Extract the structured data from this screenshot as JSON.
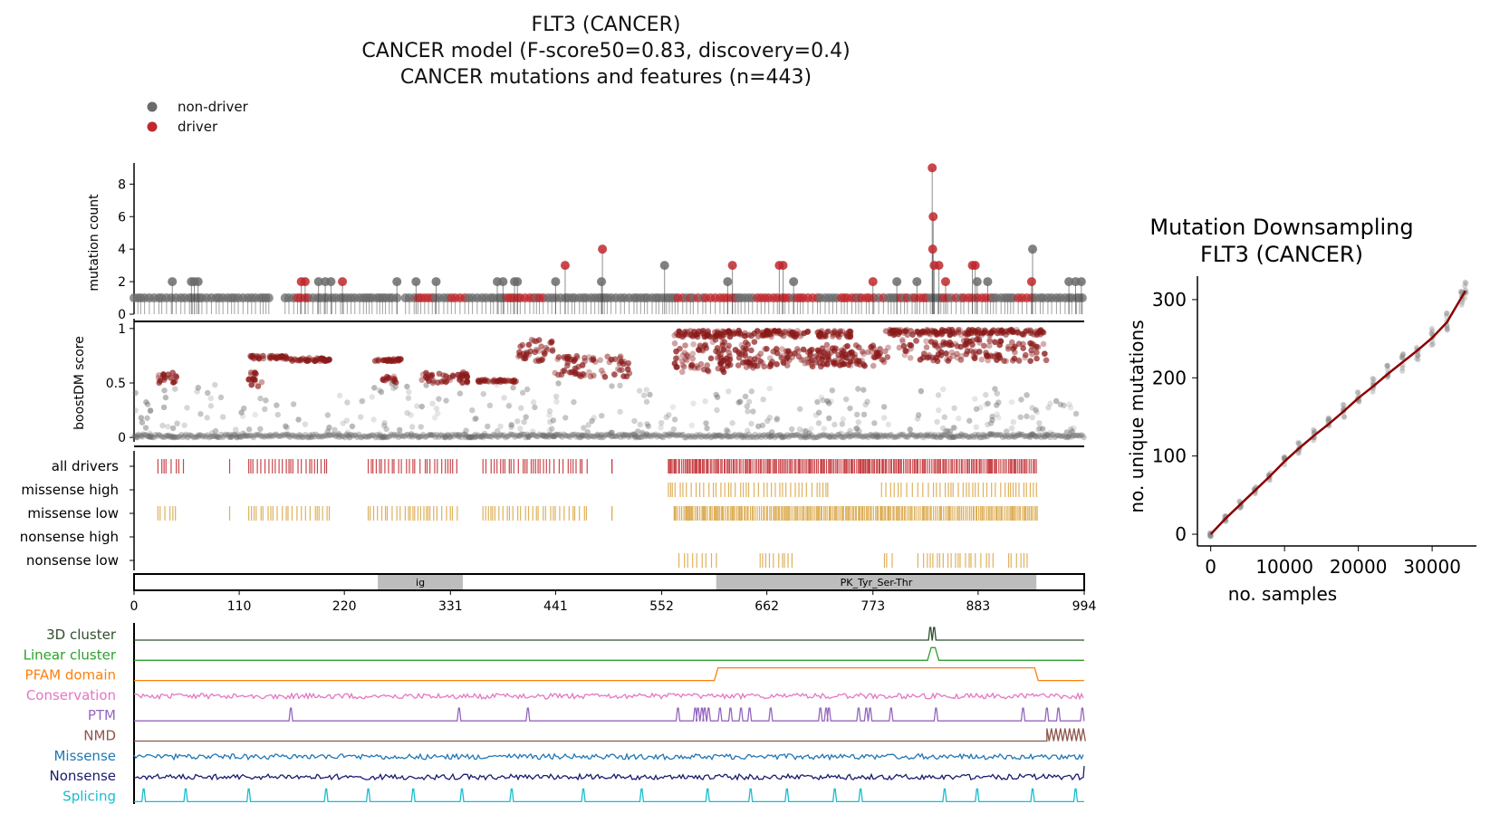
{
  "title": {
    "line1": "FLT3 (CANCER)",
    "line2": "CANCER model (F-score50=0.83, discovery=0.4)",
    "line3": "CANCER mutations and features (n=443)"
  },
  "legend": {
    "items": [
      {
        "label": "non-driver",
        "color": "#6b6b6b"
      },
      {
        "label": "driver",
        "color": "#c0282d"
      }
    ]
  },
  "colors": {
    "driver": "#c0282d",
    "driver_dark": "#8b1a1a",
    "nondriver": "#6b6b6b",
    "track_gold": "#d9a441",
    "domain_fill": "#bdbdbd",
    "downsampling_line": "#8b0000"
  },
  "chart_data": [
    {
      "type": "scatter",
      "name": "mutation-count-lollipop",
      "ylabel": "mutation count",
      "ylim": [
        0,
        9.3
      ],
      "yticks": [
        0,
        2,
        4,
        6,
        8
      ],
      "xlim": [
        0,
        994
      ],
      "stems": [
        {
          "pos": 40,
          "count": 2,
          "driver": false
        },
        {
          "pos": 60,
          "count": 2,
          "driver": false
        },
        {
          "pos": 63,
          "count": 2,
          "driver": false
        },
        {
          "pos": 67,
          "count": 2,
          "driver": false
        },
        {
          "pos": 175,
          "count": 2,
          "driver": true
        },
        {
          "pos": 179,
          "count": 2,
          "driver": true
        },
        {
          "pos": 193,
          "count": 2,
          "driver": false
        },
        {
          "pos": 200,
          "count": 2,
          "driver": false
        },
        {
          "pos": 206,
          "count": 2,
          "driver": false
        },
        {
          "pos": 218,
          "count": 2,
          "driver": true
        },
        {
          "pos": 275,
          "count": 2,
          "driver": false
        },
        {
          "pos": 295,
          "count": 2,
          "driver": false
        },
        {
          "pos": 316,
          "count": 2,
          "driver": false
        },
        {
          "pos": 380,
          "count": 2,
          "driver": false
        },
        {
          "pos": 386,
          "count": 2,
          "driver": false
        },
        {
          "pos": 398,
          "count": 2,
          "driver": false
        },
        {
          "pos": 401,
          "count": 2,
          "driver": false
        },
        {
          "pos": 451,
          "count": 3,
          "driver": true
        },
        {
          "pos": 441,
          "count": 2,
          "driver": false
        },
        {
          "pos": 490,
          "count": 4,
          "driver": true
        },
        {
          "pos": 489,
          "count": 2,
          "driver": false
        },
        {
          "pos": 555,
          "count": 3,
          "driver": false
        },
        {
          "pos": 626,
          "count": 3,
          "driver": true
        },
        {
          "pos": 621,
          "count": 2,
          "driver": false
        },
        {
          "pos": 675,
          "count": 3,
          "driver": true
        },
        {
          "pos": 679,
          "count": 3,
          "driver": true
        },
        {
          "pos": 690,
          "count": 2,
          "driver": false
        },
        {
          "pos": 773,
          "count": 2,
          "driver": true
        },
        {
          "pos": 798,
          "count": 2,
          "driver": false
        },
        {
          "pos": 819,
          "count": 2,
          "driver": false
        },
        {
          "pos": 835,
          "count": 9,
          "driver": true
        },
        {
          "pos": 836,
          "count": 6,
          "driver": true
        },
        {
          "pos": 835.5,
          "count": 4,
          "driver": true
        },
        {
          "pos": 837,
          "count": 3,
          "driver": true
        },
        {
          "pos": 842,
          "count": 3,
          "driver": true
        },
        {
          "pos": 849,
          "count": 2,
          "driver": true
        },
        {
          "pos": 877,
          "count": 3,
          "driver": true
        },
        {
          "pos": 880,
          "count": 3,
          "driver": true
        },
        {
          "pos": 882,
          "count": 2,
          "driver": false
        },
        {
          "pos": 893,
          "count": 2,
          "driver": false
        },
        {
          "pos": 940,
          "count": 4,
          "driver": false
        },
        {
          "pos": 939,
          "count": 2,
          "driver": true
        },
        {
          "pos": 978,
          "count": 2,
          "driver": false
        },
        {
          "pos": 985,
          "count": 2,
          "driver": false
        },
        {
          "pos": 991,
          "count": 2,
          "driver": false
        }
      ],
      "baseline": {
        "count": 1,
        "ranges": [
          [
            0,
            144
          ],
          [
            158,
            275
          ],
          [
            284,
            994
          ]
        ],
        "driver_ranges": [
          [
            168,
            182
          ],
          [
            297,
            312
          ],
          [
            325,
            352
          ],
          [
            390,
            430
          ],
          [
            568,
            630
          ],
          [
            650,
            716
          ],
          [
            735,
            790
          ],
          [
            800,
            830
          ],
          [
            845,
            900
          ],
          [
            925,
            940
          ]
        ]
      }
    },
    {
      "type": "scatter",
      "name": "boostdm-score",
      "ylabel": "boostDM score",
      "ylim": [
        -0.04,
        1.04
      ],
      "yticks": [
        0,
        0.5,
        1
      ],
      "ytick_labels": [
        "0",
        "0.5",
        "1"
      ],
      "xlim": [
        0,
        994
      ],
      "driver_clusters": [
        {
          "x": [
            25,
            45
          ],
          "y": [
            0.5,
            0.62
          ]
        },
        {
          "x": [
            120,
            160
          ],
          "y": [
            0.72,
            0.75
          ]
        },
        {
          "x": [
            118,
            135
          ],
          "y": [
            0.46,
            0.6
          ]
        },
        {
          "x": [
            160,
            205
          ],
          "y": [
            0.7,
            0.73
          ]
        },
        {
          "x": [
            250,
            280
          ],
          "y": [
            0.7,
            0.72
          ]
        },
        {
          "x": [
            260,
            275
          ],
          "y": [
            0.5,
            0.56
          ]
        },
        {
          "x": [
            300,
            350
          ],
          "y": [
            0.5,
            0.6
          ]
        },
        {
          "x": [
            360,
            400
          ],
          "y": [
            0.51,
            0.53
          ]
        },
        {
          "x": [
            400,
            440
          ],
          "y": [
            0.7,
            0.9
          ]
        },
        {
          "x": [
            440,
            520
          ],
          "y": [
            0.55,
            0.75
          ]
        },
        {
          "x": [
            565,
            750
          ],
          "y": [
            0.92,
            0.98
          ]
        },
        {
          "x": [
            565,
            650
          ],
          "y": [
            0.6,
            0.9
          ]
        },
        {
          "x": [
            610,
            760
          ],
          "y": [
            0.65,
            0.82
          ]
        },
        {
          "x": [
            720,
            790
          ],
          "y": [
            0.65,
            0.85
          ]
        },
        {
          "x": [
            785,
            955
          ],
          "y": [
            0.94,
            0.99
          ]
        },
        {
          "x": [
            800,
            955
          ],
          "y": [
            0.7,
            0.9
          ]
        }
      ],
      "nondriver_points": "dense band near 0 across all positions, scattered grey points between 0.05 and 0.5"
    },
    {
      "type": "table",
      "name": "mutation-tracks",
      "rows": [
        "all drivers",
        "missense high",
        "missense low",
        "nonsense high",
        "nonsense low"
      ],
      "colors": [
        "#c0282d",
        "#d9a441",
        "#d9a441",
        "#d9a441",
        "#d9a441"
      ],
      "segments": [
        [
          [
            25,
            56
          ],
          [
            100,
            102
          ],
          [
            120,
            205
          ],
          [
            245,
            340
          ],
          [
            365,
            475
          ],
          [
            500,
            500
          ],
          [
            559,
            945
          ]
        ],
        [
          [
            559,
            728
          ],
          [
            782,
            948
          ]
        ],
        [
          [
            25,
            45
          ],
          [
            100,
            102
          ],
          [
            120,
            205
          ],
          [
            245,
            340
          ],
          [
            365,
            475
          ],
          [
            500,
            500
          ],
          [
            565,
            945
          ]
        ],
        [],
        [
          [
            570,
            610
          ],
          [
            655,
            690
          ],
          [
            785,
            795
          ],
          [
            820,
            900
          ],
          [
            915,
            935
          ]
        ]
      ]
    },
    {
      "type": "bar",
      "name": "protein-domains",
      "xlim": [
        0,
        994
      ],
      "xticks": [
        0,
        110,
        220,
        331,
        441,
        552,
        662,
        773,
        883,
        994
      ],
      "domains": [
        {
          "label": "ig",
          "start": 255,
          "end": 344
        },
        {
          "label": "PK_Tyr_Ser-Thr",
          "start": 609,
          "end": 944
        }
      ]
    },
    {
      "type": "line",
      "name": "feature-tracks",
      "xlim": [
        0,
        994
      ],
      "tracks": [
        {
          "label": "3D cluster",
          "color": "#2f4f2f",
          "kind": "spikes",
          "positions": [
            833,
            837
          ]
        },
        {
          "label": "Linear cluster",
          "color": "#2ca02c",
          "kind": "plateau",
          "start": 832,
          "end": 840
        },
        {
          "label": "PFAM domain",
          "color": "#ff7f0e",
          "kind": "plateau",
          "start": 609,
          "end": 944
        },
        {
          "label": "Conservation",
          "color": "#e377c2",
          "kind": "noise"
        },
        {
          "label": "PTM",
          "color": "#9467bd",
          "kind": "spikes",
          "positions": [
            164,
            340,
            412,
            569,
            587,
            590,
            594,
            597,
            601,
            613,
            624,
            635,
            644,
            666,
            718,
            724,
            727,
            758,
            766,
            770,
            792,
            839,
            930,
            955,
            967,
            992
          ]
        },
        {
          "label": "NMD",
          "color": "#8c564b",
          "kind": "nmd",
          "start": 955
        },
        {
          "label": "Missense",
          "color": "#1f77b4",
          "kind": "noise"
        },
        {
          "label": "Nonsense",
          "color": "#1a1a6e",
          "kind": "noise"
        },
        {
          "label": "Splicing",
          "color": "#17becf",
          "kind": "spikes",
          "positions": [
            10,
            54,
            120,
            201,
            245,
            292,
            343,
            395,
            470,
            531,
            600,
            645,
            683,
            733,
            760,
            848,
            882,
            940,
            985
          ]
        }
      ]
    },
    {
      "type": "line",
      "name": "mutation-downsampling",
      "title": "Mutation Downsampling",
      "subtitle": "FLT3 (CANCER)",
      "xlabel": "no. samples",
      "ylabel": "no. unique mutations",
      "xlim": [
        -1800,
        36000
      ],
      "ylim": [
        -15,
        330
      ],
      "xticks": [
        0,
        10000,
        20000,
        30000
      ],
      "yticks": [
        0,
        100,
        200,
        300
      ],
      "x": [
        0,
        2000,
        4000,
        6000,
        8000,
        10000,
        12000,
        14000,
        16000,
        18000,
        20000,
        22000,
        24000,
        26000,
        28000,
        30000,
        32000,
        34000,
        34500
      ],
      "y": [
        0,
        20,
        38,
        56,
        74,
        93,
        110,
        126,
        141,
        157,
        174,
        189,
        205,
        220,
        235,
        251,
        271,
        303,
        311
      ]
    }
  ]
}
